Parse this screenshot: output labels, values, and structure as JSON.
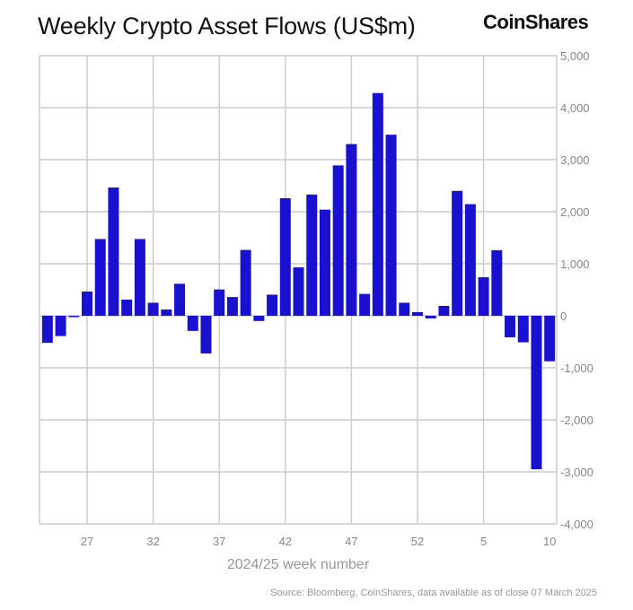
{
  "chart_data": {
    "type": "bar",
    "title": "Weekly Crypto Asset Flows (US$m)",
    "xlabel": "2024/25 week number",
    "ylabel": "",
    "ylim": [
      -4000,
      5000
    ],
    "yticks": [
      5000,
      4000,
      3000,
      2000,
      1000,
      0,
      -1000,
      -2000,
      -3000,
      -4000
    ],
    "ytick_labels": [
      "5,000",
      "4,000",
      "3,000",
      "2,000",
      "1,000",
      "0",
      "-1,000",
      "-2,000",
      "-3,000",
      "-4,000"
    ],
    "y_axis_side": "right",
    "xtick_labels": [
      "27",
      "32",
      "37",
      "42",
      "47",
      "52",
      "5",
      "10"
    ],
    "grid": true,
    "bar_color": "#1a10d0",
    "categories": [
      "24",
      "25",
      "26",
      "27",
      "28",
      "29",
      "30",
      "31",
      "32",
      "33",
      "34",
      "35",
      "36",
      "37",
      "38",
      "39",
      "40",
      "41",
      "42",
      "43",
      "44",
      "45",
      "46",
      "47",
      "48",
      "49",
      "50",
      "51",
      "52",
      "1",
      "2",
      "3",
      "4",
      "5",
      "6",
      "7",
      "8",
      "9",
      "10"
    ],
    "values": [
      -520,
      -390,
      -20,
      465,
      1475,
      2465,
      310,
      1475,
      250,
      120,
      615,
      -290,
      -725,
      505,
      360,
      1265,
      -100,
      405,
      2260,
      930,
      2330,
      2040,
      2890,
      3300,
      420,
      4280,
      3480,
      250,
      70,
      -50,
      190,
      2400,
      2145,
      740,
      1260,
      -415,
      -510,
      -2950,
      -875
    ]
  },
  "brand": {
    "logo": "CoinShares"
  },
  "source": "Source: Bloomberg, CoinShares, data available as of close 07 March 2025"
}
